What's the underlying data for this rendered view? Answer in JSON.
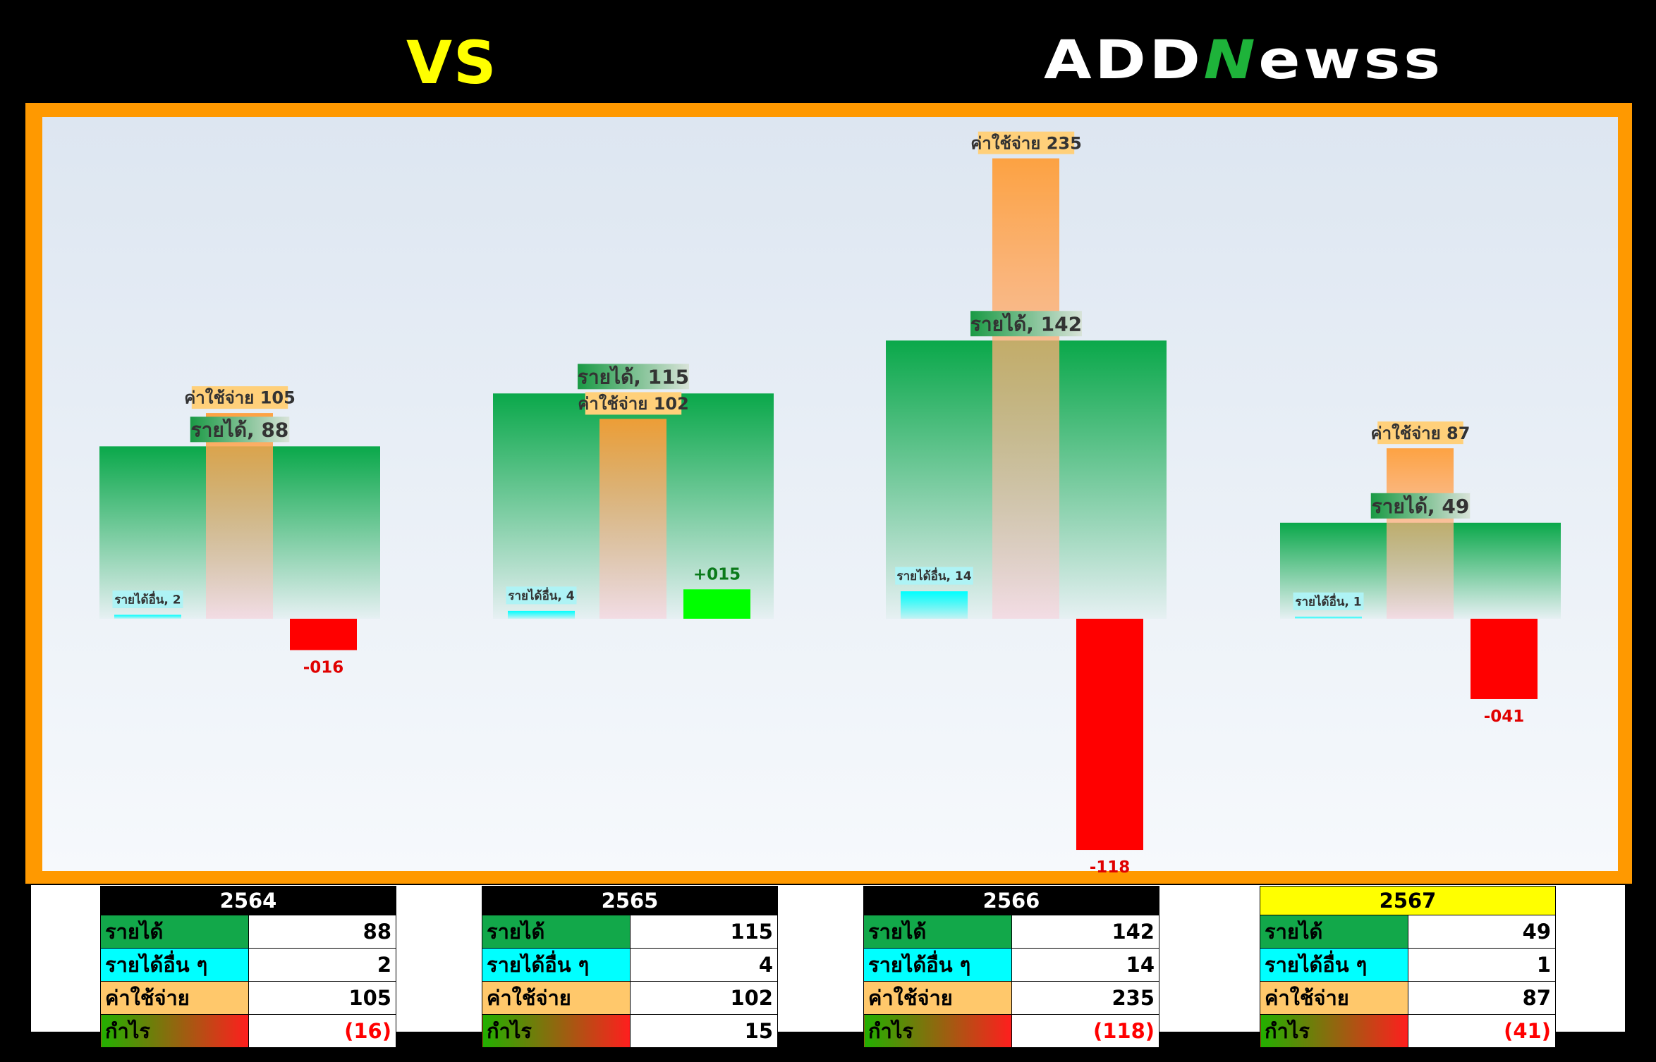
{
  "header": {
    "vs": "VS",
    "logo_pre": "ADD",
    "logo_n": "N",
    "logo_post": "ewss"
  },
  "colors": {
    "revenue": "#12a84a",
    "other": "#00ffff",
    "expense": "#ff9c33",
    "profit_pos": "#00ff00",
    "profit_neg": "#ff0000",
    "frame": "#ff9900",
    "current_year": "#ffff00"
  },
  "labels": {
    "revenue": "รายได้",
    "other": "รายได้อื่น ๆ",
    "expense": "ค่าใช้จ่าย",
    "profit": "กำไร",
    "chart_revenue": "รายได้",
    "chart_other": "รายได้อื่น",
    "chart_expense": "ค่าใช้จ่าย"
  },
  "tables": [
    {
      "year": "2564",
      "revenue": "88",
      "other": "2",
      "expense": "105",
      "profit": "(16)",
      "profit_negative": true,
      "current": false
    },
    {
      "year": "2565",
      "revenue": "115",
      "other": "4",
      "expense": "102",
      "profit": "15",
      "profit_negative": false,
      "current": false
    },
    {
      "year": "2566",
      "revenue": "142",
      "other": "14",
      "expense": "235",
      "profit": "(118)",
      "profit_negative": true,
      "current": false
    },
    {
      "year": "2567",
      "revenue": "49",
      "other": "1",
      "expense": "87",
      "profit": "(41)",
      "profit_negative": true,
      "current": true
    }
  ],
  "chart_data": {
    "type": "bar",
    "categories": [
      "2564",
      "2565",
      "2566",
      "2567"
    ],
    "series": [
      {
        "name": "รายได้",
        "values": [
          88,
          115,
          142,
          49
        ]
      },
      {
        "name": "รายได้อื่น",
        "values": [
          2,
          4,
          14,
          1
        ]
      },
      {
        "name": "ค่าใช้จ่าย",
        "values": [
          105,
          102,
          235,
          87
        ]
      },
      {
        "name": "กำไร",
        "values": [
          -16,
          15,
          -118,
          -41
        ]
      }
    ],
    "profit_labels": [
      "-016",
      "+015",
      "-118",
      "-041"
    ],
    "title": "",
    "xlabel": "",
    "ylabel": "",
    "ylim": [
      -130,
      250
    ],
    "grid": false,
    "legend": "none"
  }
}
